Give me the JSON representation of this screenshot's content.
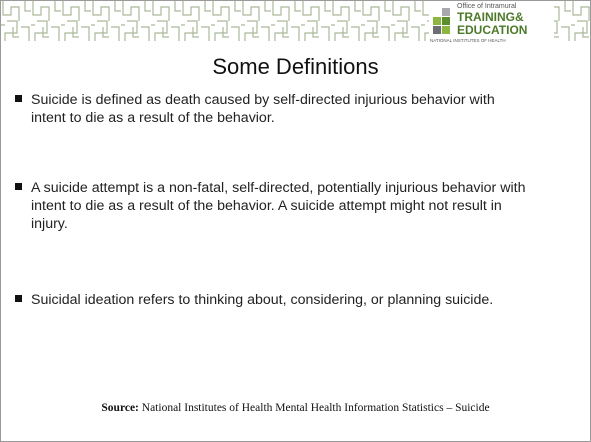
{
  "header": {
    "logo": {
      "line1": "Office of Intramural",
      "line2": "TRAINING&",
      "line3": "EDUCATION",
      "line4": "NATIONAL INSTITUTES OF HEALTH"
    }
  },
  "title": "Some Definitions",
  "bullets": [
    "Suicide is defined as death caused by self-directed injurious behavior with intent to die as a result of the behavior.",
    "A suicide attempt is a non-fatal, self-directed, potentially injurious behavior with intent to die as a result of the behavior. A suicide attempt might not result in injury.",
    "Suicidal ideation refers to thinking about, considering, or planning suicide."
  ],
  "source": {
    "label": "Source:",
    "text": "National Institutes of Health Mental Health Information Statistics – Suicide"
  }
}
